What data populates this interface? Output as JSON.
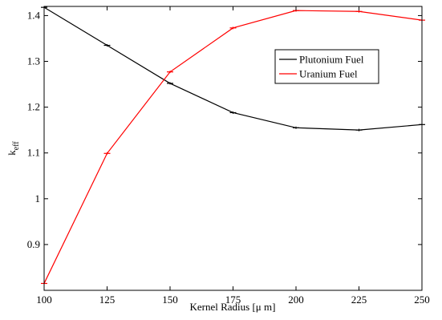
{
  "chart_data": {
    "type": "line",
    "xlabel": "Kernel Radius  [μ m]",
    "ylabel_main": "k",
    "ylabel_sub": "eff",
    "x": [
      100,
      125,
      150,
      175,
      200,
      225,
      250
    ],
    "xlim": [
      100,
      250
    ],
    "ylim": [
      0.8,
      1.42
    ],
    "xticks": [
      "100",
      "125",
      "150",
      "175",
      "200",
      "225",
      "250"
    ],
    "yticks": [
      "0.9",
      "1",
      "1.1",
      "1.2",
      "1.3",
      "1.4"
    ],
    "legend_position": "upper-right",
    "series": [
      {
        "name": "Plutonium Fuel",
        "color": "#000000",
        "values": [
          1.418,
          1.335,
          1.252,
          1.188,
          1.155,
          1.15,
          1.162
        ]
      },
      {
        "name": "Uranium Fuel",
        "color": "#ff0000",
        "values": [
          0.815,
          1.099,
          1.277,
          1.373,
          1.411,
          1.409,
          1.39
        ]
      }
    ]
  }
}
